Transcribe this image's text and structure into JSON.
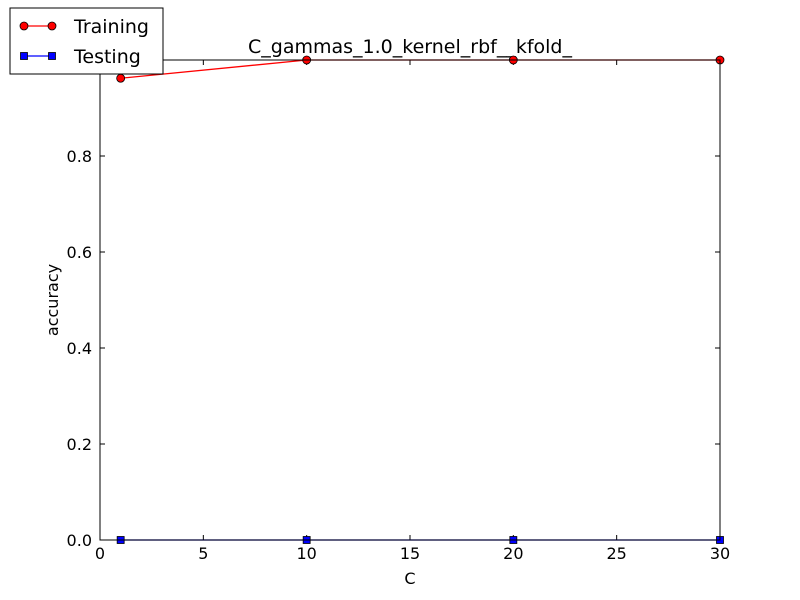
{
  "chart_data": {
    "type": "line",
    "title": "C_gammas_1.0_kernel_rbf__kfold_",
    "xlabel": "C",
    "ylabel": "accuracy",
    "xlim": [
      0,
      30
    ],
    "ylim": [
      0.0,
      1.0
    ],
    "xticks": [
      0,
      5,
      10,
      15,
      20,
      25,
      30
    ],
    "yticks": [
      0.0,
      0.2,
      0.4,
      0.6,
      0.8
    ],
    "xtick_labels": [
      "0",
      "5",
      "10",
      "15",
      "20",
      "25",
      "30"
    ],
    "ytick_labels": [
      "0.0",
      "0.2",
      "0.4",
      "0.6",
      "0.8"
    ],
    "grid": false,
    "legend_position": "top-left (outside axes)",
    "series": [
      {
        "name": "Training",
        "color": "#ff0000",
        "marker": "circle",
        "x": [
          1,
          10,
          20,
          30
        ],
        "y": [
          0.962,
          1.0,
          1.0,
          1.0
        ]
      },
      {
        "name": "Testing",
        "color": "#0000ff",
        "marker": "square",
        "x": [
          1,
          10,
          20,
          30
        ],
        "y": [
          0.0,
          0.0,
          0.0,
          0.0
        ]
      }
    ]
  }
}
